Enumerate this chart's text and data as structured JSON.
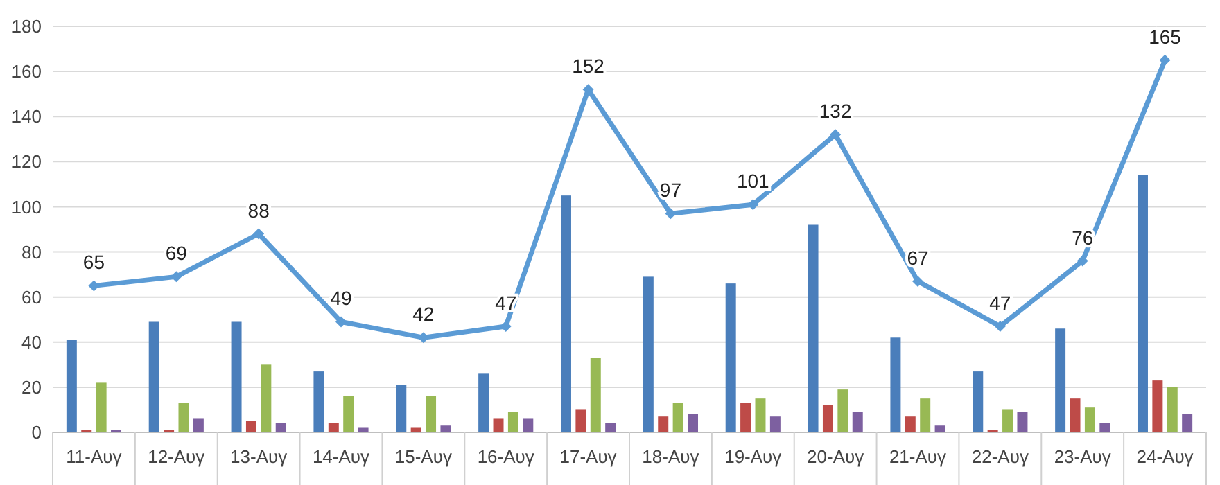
{
  "chart_data": {
    "type": "bar",
    "categories": [
      "11-Αυγ",
      "12-Αυγ",
      "13-Αυγ",
      "14-Αυγ",
      "15-Αυγ",
      "16-Αυγ",
      "17-Αυγ",
      "18-Αυγ",
      "19-Αυγ",
      "20-Αυγ",
      "21-Αυγ",
      "22-Αυγ",
      "23-Αυγ",
      "24-Αυγ"
    ],
    "series": [
      {
        "color": "#4a7ebb",
        "values": [
          41,
          49,
          49,
          27,
          21,
          26,
          105,
          69,
          66,
          92,
          42,
          27,
          46,
          114
        ]
      },
      {
        "color": "#be4b48",
        "values": [
          1,
          1,
          5,
          4,
          2,
          6,
          10,
          7,
          13,
          12,
          7,
          1,
          15,
          23
        ]
      },
      {
        "color": "#98b954",
        "values": [
          22,
          13,
          30,
          16,
          16,
          9,
          33,
          13,
          15,
          19,
          15,
          10,
          11,
          20
        ]
      },
      {
        "color": "#7d60a0",
        "values": [
          1,
          6,
          4,
          2,
          3,
          6,
          4,
          8,
          7,
          9,
          3,
          9,
          4,
          8
        ]
      },
      {
        "type": "line",
        "color": "#5b9bd5",
        "marker": "diamond",
        "values": [
          65,
          69,
          88,
          49,
          42,
          47,
          152,
          97,
          101,
          132,
          67,
          47,
          76,
          165
        ],
        "value_labels": [
          "65",
          "69",
          "88",
          "49",
          "42",
          "47",
          "152",
          "97",
          "101",
          "132",
          "67",
          "47",
          "76",
          "165"
        ]
      }
    ],
    "ylim": [
      0,
      180
    ],
    "yticks": [
      0,
      20,
      40,
      60,
      80,
      100,
      120,
      140,
      160,
      180
    ],
    "grid": "y"
  }
}
